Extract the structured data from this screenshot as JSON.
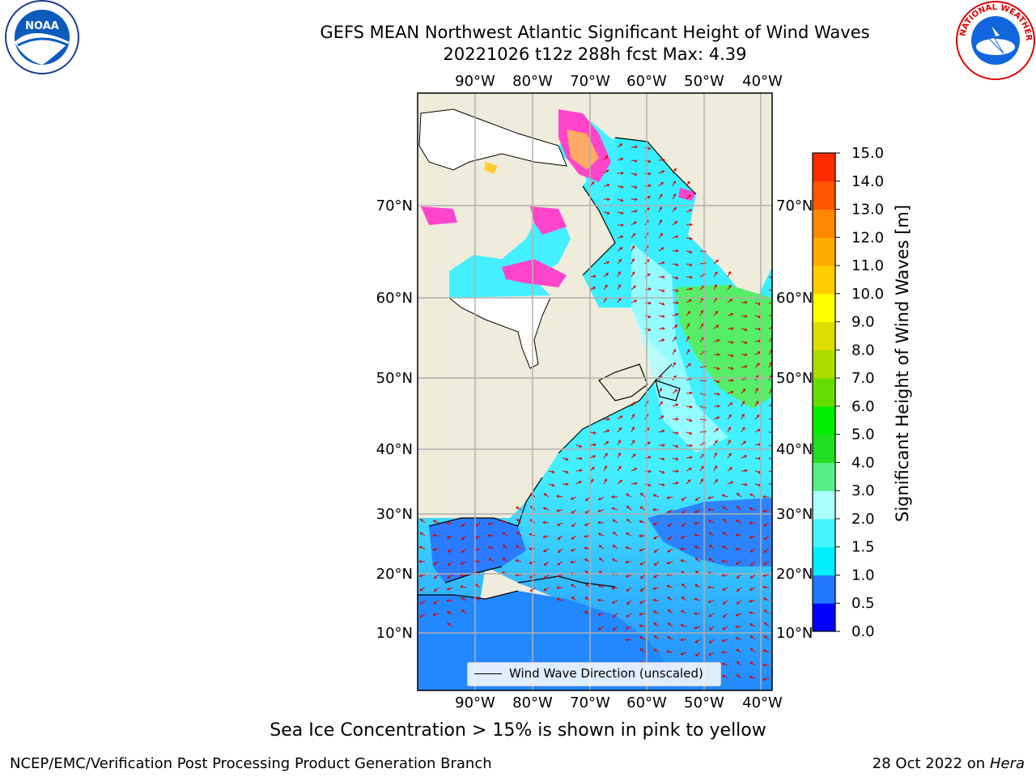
{
  "header": {
    "title": "GEFS MEAN Northwest Atlantic Significant Height of Wind Waves",
    "subtitle": "20221026 t12z 288h fcst   Max: 4.39"
  },
  "logos": {
    "left": "NOAA",
    "right": "NATIONAL WEATHER SERVICE"
  },
  "map": {
    "lon_ticks": [
      "90°W",
      "80°W",
      "70°W",
      "60°W",
      "50°W",
      "40°W"
    ],
    "lat_ticks": [
      "70°N",
      "60°N",
      "50°N",
      "40°N",
      "30°N",
      "20°N",
      "10°N"
    ],
    "legend": "Wind Wave Direction (unscaled)",
    "land_color": "#efecdc",
    "grid_color": "#b0b0b0",
    "arrow_color": "#e00000"
  },
  "colorbar": {
    "label": "Significant Height of Wind Waves [m]",
    "ticks": [
      "0.0",
      "0.5",
      "1.0",
      "1.5",
      "2.0",
      "3.0",
      "4.0",
      "5.0",
      "6.0",
      "7.0",
      "8.0",
      "9.0",
      "10.0",
      "11.0",
      "12.0",
      "13.0",
      "14.0",
      "15.0"
    ],
    "colors": [
      "#0000ff",
      "#2277ff",
      "#00eeff",
      "#44f5ff",
      "#aaffff",
      "#55ee88",
      "#22dd22",
      "#00ee00",
      "#66dd00",
      "#aadd00",
      "#dddd00",
      "#ffff00",
      "#ffcc00",
      "#ffaa00",
      "#ff8800",
      "#ff5500",
      "#ff2a00",
      "#ff0000"
    ]
  },
  "footer": {
    "note": "Sea Ice Concentration > 15% is shown in pink to yellow",
    "branch": "NCEP/EMC/Verification Post Processing Product Generation Branch",
    "date": "28 Oct 2022 on ",
    "machine": "Hera"
  }
}
